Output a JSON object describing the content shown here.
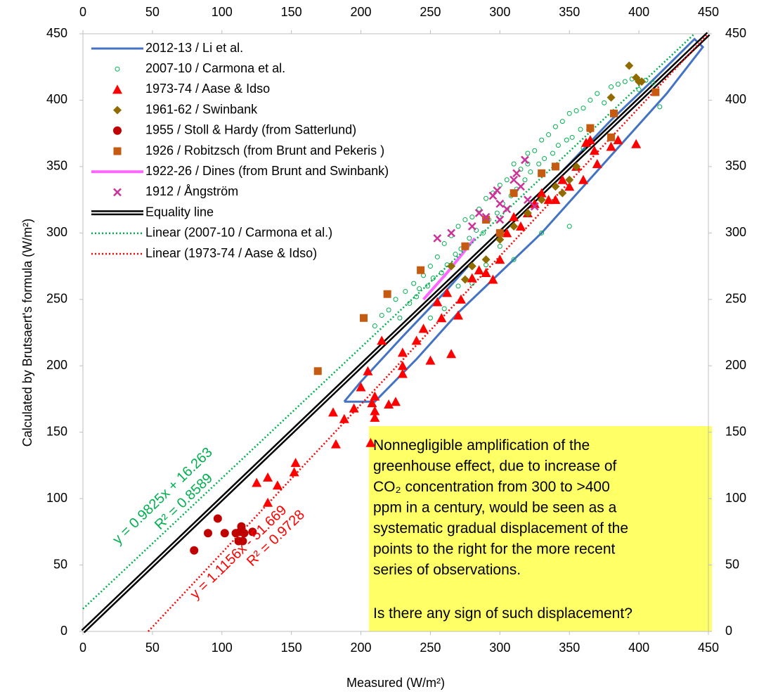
{
  "chart_data": {
    "type": "scatter",
    "x_label": "Measured (W/m²)",
    "y_label": "Calculated by Brutsaert's formula (W/m²)",
    "xlim": [
      0,
      450
    ],
    "ylim": [
      0,
      450
    ],
    "xticks": [
      0,
      50,
      100,
      150,
      200,
      250,
      300,
      350,
      400,
      450
    ],
    "yticks": [
      0,
      50,
      100,
      150,
      200,
      250,
      300,
      350,
      400,
      450
    ],
    "legend": "upper-left",
    "series": [
      {
        "name": "2012-13 / Li et al.",
        "color": "#4472c4",
        "marker": "none",
        "line": "solid",
        "x": [
          188,
          200,
          230,
          260,
          290,
          320,
          350,
          380,
          410,
          440,
          446,
          420,
          390,
          360,
          330,
          300,
          270,
          240,
          210,
          188
        ],
        "values": [
          173,
          188,
          222,
          255,
          290,
          320,
          352,
          385,
          415,
          446,
          440,
          405,
          370,
          335,
          300,
          270,
          240,
          205,
          173,
          173
        ]
      },
      {
        "name": "2007-10 / Carmona et al.",
        "color": "#00b050",
        "marker": "circle-open",
        "line": "none",
        "x": [
          210,
          215,
          220,
          225,
          228,
          232,
          235,
          238,
          240,
          242,
          245,
          248,
          250,
          252,
          255,
          258,
          260,
          262,
          265,
          268,
          270,
          272,
          275,
          278,
          280,
          283,
          285,
          288,
          290,
          292,
          295,
          298,
          300,
          302,
          305,
          308,
          310,
          312,
          315,
          318,
          320,
          322,
          325,
          328,
          330,
          332,
          335,
          338,
          340,
          342,
          345,
          348,
          350,
          352,
          355,
          358,
          360,
          365,
          370,
          375,
          380,
          385,
          390,
          395,
          400,
          405,
          410,
          415,
          300,
          290,
          280,
          310,
          330,
          350,
          320,
          340,
          270,
          260,
          250,
          360
        ],
        "values": [
          230,
          238,
          242,
          250,
          236,
          256,
          247,
          262,
          252,
          258,
          268,
          260,
          275,
          266,
          282,
          270,
          292,
          276,
          298,
          284,
          305,
          288,
          310,
          296,
          312,
          302,
          318,
          300,
          326,
          310,
          330,
          315,
          336,
          322,
          340,
          328,
          352,
          333,
          348,
          340,
          360,
          346,
          362,
          352,
          370,
          356,
          374,
          360,
          380,
          366,
          384,
          370,
          390,
          372,
          392,
          378,
          394,
          400,
          405,
          398,
          410,
          412,
          414,
          416,
          408,
          415,
          413,
          395,
          290,
          276,
          262,
          280,
          300,
          305,
          352,
          325,
          260,
          243,
          236,
          364
        ]
      },
      {
        "name": "1973-74 / Aase & Idso",
        "color": "#ff0000",
        "marker": "triangle",
        "line": "none",
        "x": [
          180,
          182,
          188,
          195,
          200,
          205,
          208,
          210,
          210,
          215,
          220,
          225,
          230,
          230,
          230,
          240,
          245,
          250,
          255,
          258,
          262,
          265,
          270,
          272,
          280,
          285,
          290,
          295,
          300,
          305,
          310,
          315,
          320,
          325,
          330,
          335,
          340,
          345,
          350,
          355,
          360,
          362,
          365,
          368,
          370,
          380,
          385,
          398,
          125,
          133,
          140,
          152,
          153,
          133,
          210,
          207
        ],
        "values": [
          165,
          141,
          160,
          168,
          184,
          196,
          172,
          166,
          161,
          219,
          171,
          173,
          194,
          200,
          210,
          219,
          228,
          204,
          248,
          236,
          255,
          209,
          238,
          250,
          266,
          272,
          270,
          265,
          280,
          300,
          312,
          305,
          315,
          322,
          330,
          325,
          325,
          340,
          335,
          350,
          340,
          368,
          370,
          362,
          352,
          365,
          370,
          367,
          112,
          116,
          110,
          120,
          127,
          97,
          177,
          142
        ]
      },
      {
        "name": "1961-62 / Swinbank",
        "color": "#8f6b00",
        "marker": "diamond",
        "line": "none",
        "x": [
          393,
          398,
          400,
          402,
          380,
          365,
          340,
          330,
          320,
          310,
          300,
          290,
          280,
          275,
          265,
          350,
          345,
          355
        ],
        "values": [
          426,
          417,
          414,
          414,
          402,
          378,
          335,
          325,
          315,
          305,
          295,
          280,
          275,
          265,
          275,
          340,
          330,
          350
        ]
      },
      {
        "name": "1955 / Stoll & Hardy (from Satterlund)",
        "color": "#c00000",
        "marker": "circle",
        "line": "none",
        "x": [
          80,
          90,
          97,
          102,
          110,
          112,
          113,
          114,
          115,
          116,
          122
        ],
        "values": [
          61,
          74,
          85,
          74,
          74,
          68,
          75,
          79,
          68,
          74,
          75
        ]
      },
      {
        "name": "1926 / Robitzsch (from Brunt and Pekeris )",
        "color": "#c55a11",
        "marker": "square",
        "line": "none",
        "x": [
          169,
          202,
          219,
          243,
          365,
          382,
          412,
          310,
          330,
          300,
          290,
          275,
          340,
          380
        ],
        "values": [
          196,
          236,
          254,
          272,
          379,
          390,
          406,
          330,
          345,
          300,
          310,
          290,
          350,
          372
        ]
      },
      {
        "name": "1922-26 / Dines (from Brunt and Swinbank)",
        "color": "#ff66ff",
        "marker": "none",
        "line": "thick",
        "x": [
          245,
          262,
          282
        ],
        "values": [
          250,
          270,
          296
        ]
      },
      {
        "name": "1912 / Ångström",
        "color": "#cc3399",
        "marker": "x",
        "line": "none",
        "x": [
          255,
          265,
          280,
          290,
          295,
          298,
          300,
          305,
          310,
          312,
          315,
          318,
          320,
          325,
          300,
          285
        ],
        "values": [
          296,
          300,
          305,
          312,
          328,
          332,
          322,
          318,
          340,
          345,
          335,
          355,
          325,
          320,
          310,
          315
        ]
      },
      {
        "name": "Equality line",
        "color": "#000000",
        "marker": "none",
        "line": "double",
        "x": [
          0,
          450
        ],
        "values": [
          0,
          450
        ]
      },
      {
        "name": "Linear (2007-10 / Carmona et al.)",
        "color": "#00b050",
        "marker": "none",
        "line": "dotted",
        "x": [
          0,
          440
        ],
        "values": [
          17,
          450
        ]
      },
      {
        "name": "Linear (1973-74 / Aase & Idso)",
        "color": "#ff0000",
        "marker": "none",
        "line": "dotted",
        "x": [
          47,
          449
        ],
        "values": [
          0,
          449
        ]
      }
    ],
    "equations": [
      {
        "text": "y = 0.9825x + 16.263",
        "color": "#00b050"
      },
      {
        "text": "R² = 0.8589",
        "color": "#00b050"
      },
      {
        "text": "y = 1.1156x - 51.669",
        "color": "#ff0000"
      },
      {
        "text": "R² = 0.9728",
        "color": "#ff0000"
      }
    ],
    "note": {
      "lines": [
        "Nonnegligible amplification of the",
        "greenhouse effect, due to increase of",
        "CO₂ concentration from 300 to >400",
        "ppm in a century, would be seen as a",
        "systematic gradual displacement of the",
        "points to the right for the more recent",
        "series of observations."
      ],
      "question": "Is there any sign of such displacement?"
    }
  }
}
